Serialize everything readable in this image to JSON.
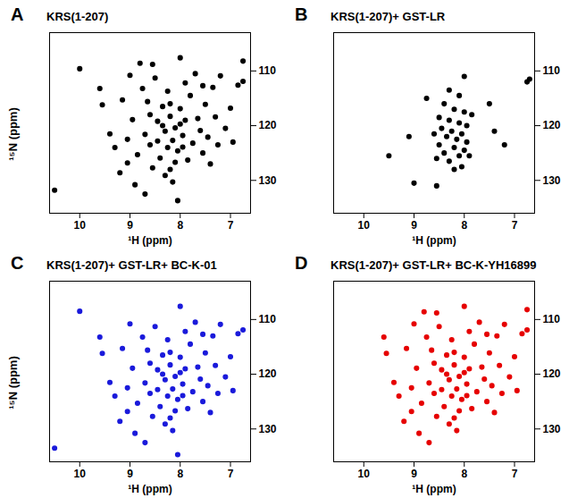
{
  "chart_data": [
    {
      "type": "scatter",
      "title": "KRS(1-207)",
      "annotations": [
        "A"
      ],
      "xlabel": "¹H (ppm)",
      "ylabel": "¹⁵N (ppm)",
      "color": "#000000",
      "xlim": [
        10.6,
        6.6
      ],
      "xticks": [
        10,
        9,
        8,
        7
      ],
      "ylim": [
        136,
        103
      ],
      "yticks": [
        110,
        120,
        130
      ],
      "x": [
        10.0,
        10.5,
        9.55,
        9.4,
        9.3,
        9.2,
        9.05,
        9.0,
        9.05,
        8.95,
        8.9,
        8.85,
        8.75,
        8.7,
        8.65,
        8.6,
        8.55,
        8.5,
        8.45,
        8.4,
        8.35,
        8.3,
        8.3,
        8.25,
        8.2,
        8.15,
        8.1,
        8.05,
        8.0,
        8.0,
        7.95,
        7.9,
        7.85,
        7.8,
        7.75,
        7.7,
        7.65,
        7.6,
        7.55,
        7.5,
        7.45,
        7.4,
        7.35,
        7.3,
        7.2,
        7.1,
        7.0,
        6.85,
        6.75,
        6.75,
        8.05,
        8.2,
        8.6,
        8.25,
        8.1,
        8.35,
        8.45,
        7.95,
        8.0,
        8.2,
        8.15,
        7.9,
        8.55,
        9.6,
        9.15,
        8.8,
        7.55,
        7.25,
        6.95,
        8.7
      ],
      "y": [
        109.6,
        131.8,
        116.2,
        121.5,
        124.0,
        128.6,
        126.8,
        110.8,
        122.5,
        118.9,
        130.8,
        125.3,
        113.2,
        121.6,
        115.6,
        123.5,
        127.7,
        111.3,
        119.2,
        125.9,
        116.5,
        121.0,
        129.1,
        113.7,
        118.3,
        122.7,
        120.4,
        124.6,
        116.9,
        107.6,
        121.8,
        119.0,
        126.3,
        114.5,
        123.2,
        110.5,
        118.7,
        120.9,
        112.7,
        116.1,
        122.1,
        127.0,
        113.0,
        118.4,
        110.9,
        120.5,
        116.8,
        112.6,
        108.2,
        111.9,
        133.7,
        128.0,
        118.0,
        124.0,
        126.7,
        120.0,
        122.8,
        123.9,
        119.7,
        116.0,
        130.3,
        112.2,
        108.8,
        113.2,
        115.3,
        108.6,
        125.0,
        123.5,
        123.0,
        132.5
      ]
    },
    {
      "type": "scatter",
      "title": "KRS(1-207)+ GST-LR",
      "annotations": [
        "B"
      ],
      "xlabel": "¹H (ppm)",
      "color": "#000000",
      "xlim": [
        10.6,
        6.6
      ],
      "xticks": [
        10,
        9,
        8,
        7
      ],
      "ylim": [
        136,
        103
      ],
      "yticks": [
        110,
        120,
        130
      ],
      "x": [
        8.0,
        8.3,
        8.1,
        8.4,
        8.2,
        8.0,
        8.5,
        8.3,
        8.1,
        7.95,
        8.45,
        8.25,
        8.05,
        8.35,
        8.15,
        7.95,
        8.5,
        8.2,
        8.0,
        8.4,
        8.1,
        8.3,
        8.05,
        8.2,
        8.6,
        7.85,
        8.55,
        7.9,
        9.1,
        9.0,
        8.55,
        7.2,
        6.75,
        7.5,
        9.5,
        7.4,
        8.75,
        6.7
      ],
      "y": [
        111.0,
        113.5,
        114.5,
        116.0,
        117.0,
        117.5,
        118.5,
        119.0,
        119.5,
        120.0,
        120.5,
        121.0,
        121.5,
        122.0,
        122.5,
        123.0,
        123.5,
        124.0,
        124.5,
        125.0,
        125.5,
        126.5,
        127.5,
        128.0,
        121.5,
        118.0,
        126.0,
        125.5,
        122.0,
        130.5,
        131.0,
        123.5,
        112.0,
        116.0,
        125.5,
        121.0,
        115.0,
        111.5
      ]
    },
    {
      "type": "scatter",
      "title": "KRS(1-207)+ GST-LR+ BC-K-01",
      "annotations": [
        "C"
      ],
      "xlabel": "¹H (ppm)",
      "ylabel": "¹⁵N (ppm)",
      "color": "#1a1adb",
      "xlim": [
        10.6,
        6.6
      ],
      "xticks": [
        10,
        9,
        8,
        7
      ],
      "ylim": [
        136,
        103
      ],
      "yticks": [
        110,
        120,
        130
      ],
      "x": [
        10.0,
        10.5,
        9.55,
        9.4,
        9.3,
        9.2,
        9.05,
        9.0,
        9.05,
        8.95,
        8.9,
        8.85,
        8.75,
        8.7,
        8.65,
        8.6,
        8.55,
        8.5,
        8.45,
        8.4,
        8.35,
        8.3,
        8.3,
        8.25,
        8.2,
        8.15,
        8.1,
        8.05,
        8.0,
        8.0,
        7.95,
        7.9,
        7.85,
        7.8,
        7.75,
        7.7,
        7.65,
        7.6,
        7.55,
        7.5,
        7.45,
        7.4,
        7.35,
        7.3,
        7.2,
        7.1,
        7.0,
        6.85,
        6.75,
        8.05,
        8.2,
        8.6,
        8.25,
        8.1,
        8.35,
        8.45,
        7.95,
        8.0,
        8.2,
        8.15,
        7.9,
        9.6,
        9.15,
        7.55,
        7.25,
        6.95,
        8.7
      ],
      "y": [
        108.5,
        133.5,
        116.2,
        121.5,
        124.0,
        128.6,
        126.8,
        110.8,
        122.5,
        118.9,
        130.8,
        125.3,
        113.2,
        121.6,
        115.6,
        123.5,
        127.7,
        111.3,
        119.2,
        125.9,
        116.5,
        121.0,
        129.1,
        113.7,
        118.3,
        122.7,
        120.4,
        124.6,
        116.9,
        107.6,
        121.8,
        119.0,
        126.3,
        114.5,
        123.2,
        110.5,
        118.7,
        120.9,
        112.7,
        116.1,
        122.1,
        127.0,
        113.0,
        118.4,
        110.9,
        120.5,
        116.8,
        112.6,
        111.9,
        134.7,
        128.0,
        118.0,
        124.0,
        126.7,
        120.0,
        122.8,
        123.9,
        119.7,
        116.0,
        130.3,
        112.2,
        113.2,
        115.3,
        125.0,
        123.5,
        123.0,
        132.5
      ]
    },
    {
      "type": "scatter",
      "title": "KRS(1-207)+ GST-LR+ BC-K-YH16899",
      "annotations": [
        "D"
      ],
      "xlabel": "¹H (ppm)",
      "color": "#e60000",
      "xlim": [
        10.6,
        6.6
      ],
      "xticks": [
        10,
        9,
        8,
        7
      ],
      "ylim": [
        136,
        103
      ],
      "yticks": [
        110,
        120,
        130
      ],
      "x": [
        9.55,
        9.4,
        9.3,
        9.2,
        9.05,
        9.0,
        9.05,
        8.95,
        8.9,
        8.85,
        8.75,
        8.7,
        8.65,
        8.6,
        8.55,
        8.5,
        8.45,
        8.4,
        8.35,
        8.3,
        8.3,
        8.25,
        8.2,
        8.15,
        8.1,
        8.05,
        8.0,
        8.0,
        7.95,
        7.9,
        7.85,
        7.8,
        7.75,
        7.7,
        7.65,
        7.6,
        7.55,
        7.5,
        7.45,
        7.4,
        7.35,
        7.3,
        7.2,
        7.1,
        7.0,
        6.85,
        6.75,
        6.75,
        8.2,
        8.6,
        8.25,
        8.1,
        8.35,
        8.45,
        7.95,
        8.0,
        8.2,
        8.15,
        7.9,
        8.55,
        9.6,
        9.15,
        8.8,
        7.55,
        7.25,
        6.95,
        8.7
      ],
      "y": [
        116.2,
        121.5,
        124.0,
        128.6,
        126.8,
        110.8,
        122.5,
        118.9,
        130.8,
        125.3,
        113.2,
        121.6,
        115.6,
        123.5,
        127.7,
        111.3,
        119.2,
        125.9,
        116.5,
        121.0,
        129.1,
        113.7,
        118.3,
        122.7,
        120.4,
        124.6,
        116.9,
        107.6,
        121.8,
        119.0,
        126.3,
        114.5,
        123.2,
        110.5,
        118.7,
        120.9,
        112.7,
        116.1,
        122.1,
        127.0,
        113.0,
        118.4,
        110.9,
        120.5,
        116.8,
        112.6,
        108.2,
        111.9,
        128.0,
        118.0,
        124.0,
        126.7,
        120.0,
        122.8,
        123.9,
        119.7,
        116.0,
        130.3,
        112.2,
        108.8,
        113.2,
        115.3,
        108.6,
        125.0,
        123.5,
        123.0,
        132.5
      ]
    }
  ]
}
